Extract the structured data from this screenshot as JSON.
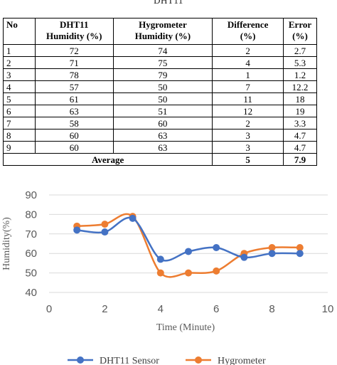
{
  "caption": "DHT11",
  "table": {
    "headers": [
      {
        "line1": "No",
        "line2": ""
      },
      {
        "line1": "DHT11",
        "line2": "Humidity (%)"
      },
      {
        "line1": "Hygrometer",
        "line2": "Humidity (%)"
      },
      {
        "line1": "Difference",
        "line2": "(%)"
      },
      {
        "line1": "Error",
        "line2": "(%)"
      }
    ],
    "rows": [
      [
        "1",
        "72",
        "74",
        "2",
        "2.7"
      ],
      [
        "2",
        "71",
        "75",
        "4",
        "5.3"
      ],
      [
        "3",
        "78",
        "79",
        "1",
        "1.2"
      ],
      [
        "4",
        "57",
        "50",
        "7",
        "12.2"
      ],
      [
        "5",
        "61",
        "50",
        "11",
        "18"
      ],
      [
        "6",
        "63",
        "51",
        "12",
        "19"
      ],
      [
        "7",
        "58",
        "60",
        "2",
        "3.3"
      ],
      [
        "8",
        "60",
        "63",
        "3",
        "4.7"
      ],
      [
        "9",
        "60",
        "63",
        "3",
        "4.7"
      ]
    ],
    "average": {
      "label": "Average",
      "difference": "5",
      "error": "7.9"
    }
  },
  "chart_data": {
    "type": "line",
    "xlabel": "Time (Minute)",
    "ylabel": "Humidity(%)",
    "xlim": [
      0,
      10
    ],
    "ylim": [
      40,
      90
    ],
    "xticks": [
      0,
      2,
      4,
      6,
      8,
      10
    ],
    "yticks": [
      40,
      50,
      60,
      70,
      80,
      90
    ],
    "grid": "horizontal",
    "legend": "bottom",
    "x": [
      1,
      2,
      3,
      4,
      5,
      6,
      7,
      8,
      9
    ],
    "series": [
      {
        "name": "DHT11 Sensor",
        "color": "#4472C4",
        "values": [
          72,
          71,
          78,
          57,
          61,
          63,
          58,
          60,
          60
        ]
      },
      {
        "name": "Hygrometer",
        "color": "#ED7D31",
        "values": [
          74,
          75,
          79,
          50,
          50,
          51,
          60,
          63,
          63
        ]
      }
    ]
  }
}
